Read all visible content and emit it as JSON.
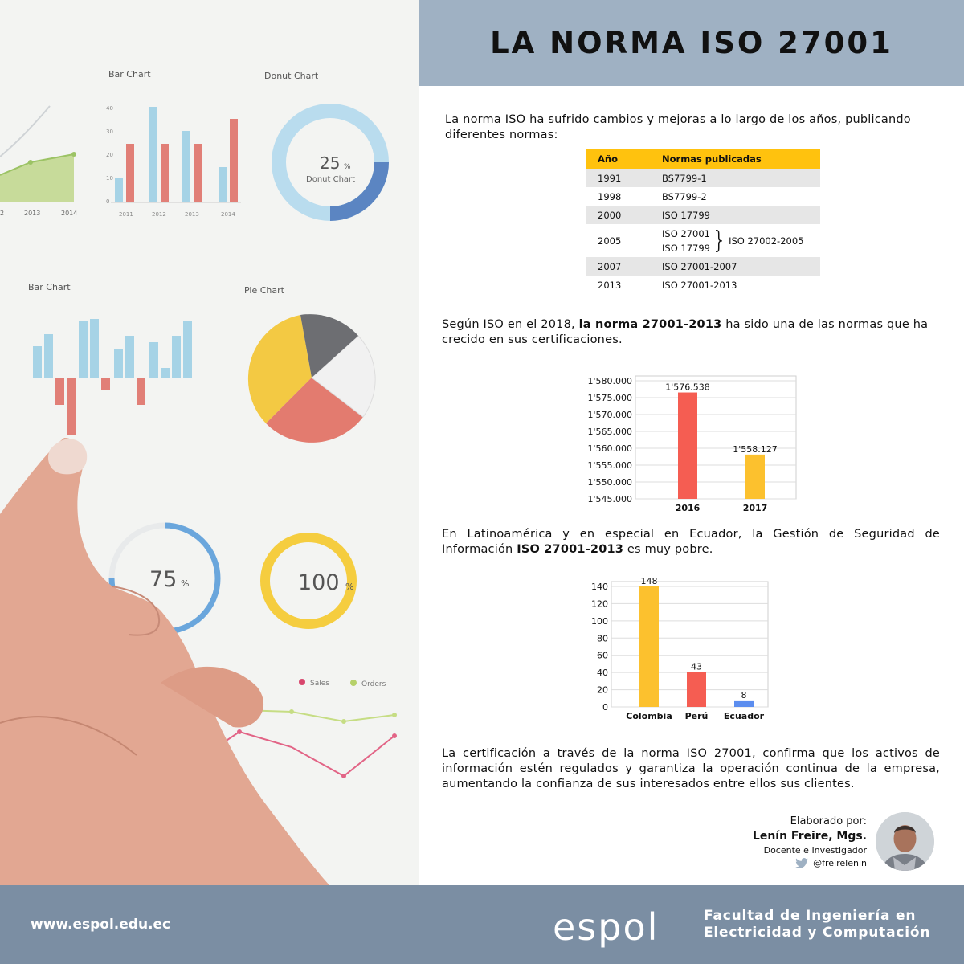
{
  "header": {
    "title": "LA NORMA ISO 27001"
  },
  "paragraphs": {
    "p1": "La norma ISO ha sufrido cambios y mejoras a lo largo de los años, publicando diferentes normas:",
    "p2_pre": "Según ISO en el 2018, ",
    "p2_bold": "la norma 27001-2013",
    "p2_post": " ha sido una de las normas que ha crecido en sus certificaciones.",
    "p3_pre": "En Latinoamérica y en especial en Ecuador, la Gestión de Seguridad de Información ",
    "p3_bold": "ISO 27001-2013",
    "p3_post": " es muy pobre.",
    "p4": "La certificación a través de la norma ISO 27001, confirma que los activos de información estén regulados y garantiza la operación continua de la empresa, aumentando la confianza de sus interesados entre ellos sus clientes."
  },
  "table": {
    "headers": [
      "Año",
      "Normas publicadas"
    ],
    "rows": [
      {
        "year": "1991",
        "norma": "BS7799-1"
      },
      {
        "year": "1998",
        "norma": "BS7799-2"
      },
      {
        "year": "2000",
        "norma": "ISO 17799"
      },
      {
        "year": "2005",
        "norma_a": "ISO 27001",
        "norma_b": "ISO 17799",
        "brace": "}",
        "norma_after": "ISO 27002-2005"
      },
      {
        "year": "2007",
        "norma": "ISO 27001-2007"
      },
      {
        "year": "2013",
        "norma": "ISO 27001-2013"
      }
    ],
    "header_color": "#ffc20e"
  },
  "chart_data": [
    {
      "type": "bar",
      "categories": [
        "2016",
        "2017"
      ],
      "values": [
        1576538,
        1558127
      ],
      "value_labels": [
        "1'576.538",
        "1'558.127"
      ],
      "ylim": [
        1545000,
        1580000
      ],
      "yticks": [
        "1'545.000",
        "1'550.000",
        "1'555.000",
        "1'560.000",
        "1'565.000",
        "1'570.000",
        "1'575.000",
        "1'580.000"
      ],
      "colors": [
        "#f55d52",
        "#fcc12e"
      ],
      "grid": true
    },
    {
      "type": "bar",
      "categories": [
        "Colombia",
        "Perú",
        "Ecuador"
      ],
      "values": [
        148,
        43,
        8
      ],
      "value_labels": [
        "148",
        "43",
        "8"
      ],
      "ylim": [
        0,
        148
      ],
      "yticks": [
        "0",
        "20",
        "40",
        "60",
        "80",
        "100",
        "120",
        "140"
      ],
      "colors": [
        "#fcc12e",
        "#f55d52",
        "#5b8def"
      ],
      "grid": true
    }
  ],
  "author": {
    "label": "Elaborado por:",
    "name": "Lenín Freire, Mgs.",
    "role": "Docente e Investigador",
    "twitter": "@freirelenin"
  },
  "footer": {
    "url": "www.espol.edu.ec",
    "logo_text": "espol",
    "faculty_line1": "Facultad de Ingeniería en",
    "faculty_line2": "Electricidad y Computación"
  },
  "photo": {
    "chart_titles": [
      "Bar Chart",
      "Donut Chart",
      "Bar Chart",
      "Pie Chart"
    ],
    "donut_center": "25",
    "donut_center_unit": "%",
    "donut_center_caption": "Donut Chart",
    "gauge1": "75",
    "gauge1_unit": "%",
    "gauge2": "100",
    "gauge2_unit": "%",
    "axis_top_left": [
      "2",
      "2013",
      "2014"
    ],
    "axis_bar_years": [
      "2011",
      "2012",
      "2013",
      "2014"
    ],
    "axis_bar_y": [
      "0",
      "10",
      "20",
      "30",
      "40"
    ],
    "legend": [
      "Sales",
      "Orders"
    ]
  }
}
